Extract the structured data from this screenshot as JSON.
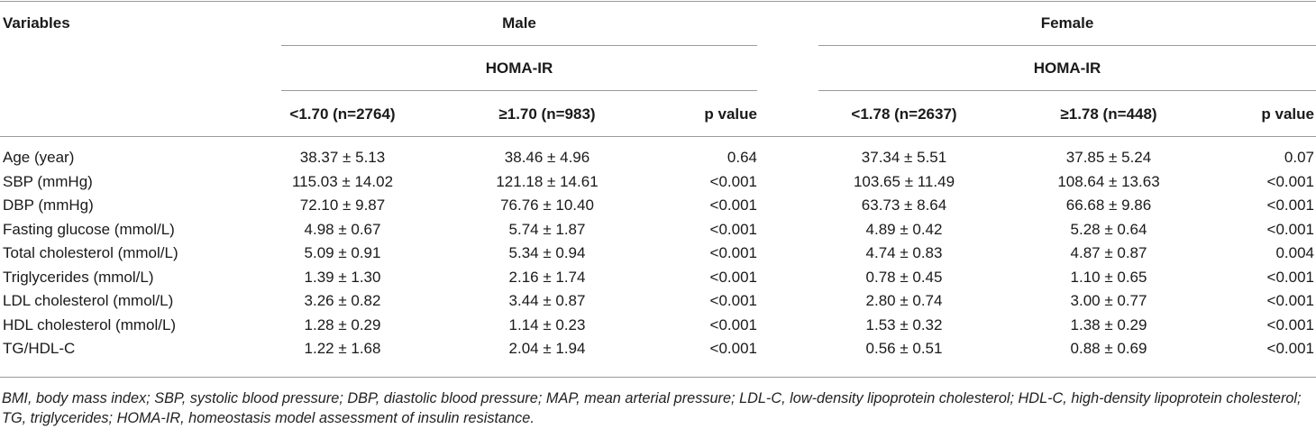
{
  "table": {
    "header": {
      "variables": "Variables",
      "male": "Male",
      "female": "Female",
      "homa_male": "HOMA-IR",
      "homa_female": "HOMA-IR",
      "columns": [
        "<1.70 (n=2764)",
        "≥1.70 (n=983)",
        "p value",
        "<1.78 (n=2637)",
        "≥1.78 (n=448)",
        "p value"
      ]
    },
    "rows": [
      {
        "label": "Age (year)",
        "cells": [
          "38.37 ± 5.13",
          "38.46 ± 4.96",
          "0.64",
          "37.34 ± 5.51",
          "37.85 ± 5.24",
          "0.07"
        ]
      },
      {
        "label": "SBP (mmHg)",
        "cells": [
          "115.03 ± 14.02",
          "121.18 ± 14.61",
          "<0.001",
          "103.65 ± 11.49",
          "108.64 ± 13.63",
          "<0.001"
        ]
      },
      {
        "label": "DBP (mmHg)",
        "cells": [
          "72.10 ± 9.87",
          "76.76 ± 10.40",
          "<0.001",
          "63.73 ± 8.64",
          "66.68 ± 9.86",
          "<0.001"
        ]
      },
      {
        "label": "Fasting glucose (mmol/L)",
        "cells": [
          "4.98 ± 0.67",
          "5.74 ± 1.87",
          "<0.001",
          "4.89 ± 0.42",
          "5.28 ± 0.64",
          "<0.001"
        ]
      },
      {
        "label": "Total cholesterol (mmol/L)",
        "cells": [
          "5.09 ± 0.91",
          "5.34 ± 0.94",
          "<0.001",
          "4.74 ± 0.83",
          "4.87 ± 0.87",
          "0.004"
        ]
      },
      {
        "label": "Triglycerides (mmol/L)",
        "cells": [
          "1.39 ± 1.30",
          "2.16 ± 1.74",
          "<0.001",
          "0.78 ± 0.45",
          "1.10 ± 0.65",
          "<0.001"
        ]
      },
      {
        "label": "LDL cholesterol (mmol/L)",
        "cells": [
          "3.26 ± 0.82",
          "3.44 ± 0.87",
          "<0.001",
          "2.80 ± 0.74",
          "3.00 ± 0.77",
          "<0.001"
        ]
      },
      {
        "label": "HDL cholesterol (mmol/L)",
        "cells": [
          "1.28 ± 0.29",
          "1.14 ± 0.23",
          "<0.001",
          "1.53 ± 0.32",
          "1.38 ± 0.29",
          "<0.001"
        ]
      },
      {
        "label": "TG/HDL-C",
        "cells": [
          "1.22 ± 1.68",
          "2.04 ± 1.94",
          "<0.001",
          "0.56 ± 0.51",
          "0.88 ± 0.69",
          "<0.001"
        ]
      }
    ],
    "footnote": "BMI, body mass index; SBP, systolic blood pressure; DBP, diastolic blood pressure; MAP, mean arterial pressure; LDL-C, low-density lipoprotein cholesterol; HDL-C, high-density lipoprotein cholesterol; TG, triglycerides; HOMA-IR, homeostasis model assessment of insulin resistance."
  }
}
